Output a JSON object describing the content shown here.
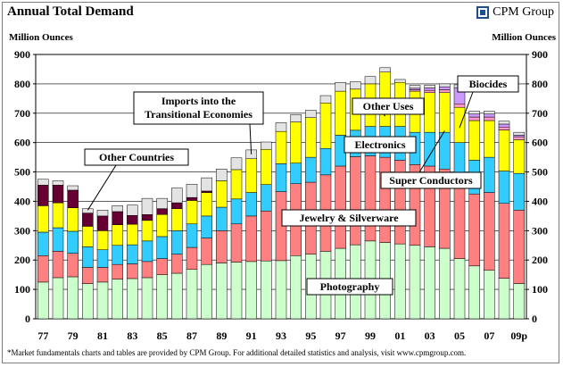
{
  "header": {
    "title": "Annual Total Demand",
    "brand": "CPM Group"
  },
  "footnote": "*Market fundamentals charts and tables are provided by CPM Group. For additional detailed statistics and analysis, visit www.cpmgroup.com.",
  "colors": {
    "photography": "#ccffcc",
    "jewelry_silverware": "#ff8080",
    "electronics": "#33ccff",
    "other_uses": "#ffff00",
    "imports_transitional": "#e3e3e3",
    "other_countries": "#660033",
    "biocides": "#cc99ff",
    "super_conductors": "#ff99cc"
  },
  "chart_data": {
    "type": "bar",
    "stacked": true,
    "title": "Annual Total Demand",
    "ylabel": "Million Ounces",
    "ylim": [
      0,
      900
    ],
    "yticks": [
      0,
      100,
      200,
      300,
      400,
      500,
      600,
      700,
      800,
      900
    ],
    "grid": true,
    "categories": [
      "1977",
      "1978",
      "1979",
      "1980",
      "1981",
      "1982",
      "1983",
      "1984",
      "1985",
      "1986",
      "1987",
      "1988",
      "1989",
      "1990",
      "1991",
      "1992",
      "1993",
      "1994",
      "1995",
      "1996",
      "1997",
      "1998",
      "1999",
      "2000",
      "2001",
      "2002",
      "2003",
      "2004",
      "2005",
      "2006",
      "2007",
      "2008",
      "2009p"
    ],
    "xtick_labels": [
      "77",
      "",
      "79",
      "",
      "81",
      "",
      "83",
      "",
      "85",
      "",
      "87",
      "",
      "89",
      "",
      "91",
      "",
      "93",
      "",
      "95",
      "",
      "97",
      "",
      "99",
      "",
      "01",
      "",
      "03",
      "",
      "05",
      "",
      "07",
      "",
      "09p"
    ],
    "series": [
      {
        "name": "Photography",
        "color": "#ccffcc",
        "values": [
          125,
          140,
          143,
          120,
          125,
          135,
          137,
          140,
          150,
          155,
          168,
          185,
          190,
          193,
          195,
          197,
          198,
          215,
          220,
          230,
          240,
          252,
          265,
          260,
          255,
          250,
          245,
          240,
          205,
          180,
          165,
          138,
          120
        ]
      },
      {
        "name": "Jewelry & Silverware",
        "color": "#ff8080",
        "values": [
          90,
          90,
          80,
          55,
          50,
          50,
          50,
          55,
          55,
          65,
          75,
          90,
          110,
          130,
          155,
          170,
          235,
          245,
          245,
          260,
          280,
          300,
          290,
          290,
          285,
          275,
          275,
          270,
          270,
          245,
          265,
          255,
          250
        ]
      },
      {
        "name": "Electronics",
        "color": "#33ccff",
        "values": [
          80,
          80,
          75,
          70,
          60,
          65,
          65,
          70,
          75,
          80,
          80,
          75,
          80,
          85,
          80,
          90,
          95,
          70,
          85,
          90,
          105,
          90,
          100,
          105,
          115,
          110,
          115,
          125,
          125,
          115,
          120,
          110,
          125
        ]
      },
      {
        "name": "Other Uses",
        "color": "#ffff00",
        "values": [
          90,
          85,
          80,
          70,
          65,
          70,
          70,
          70,
          75,
          75,
          80,
          80,
          90,
          100,
          115,
          120,
          110,
          140,
          135,
          155,
          150,
          140,
          145,
          185,
          150,
          140,
          135,
          135,
          120,
          135,
          125,
          140,
          115
        ]
      },
      {
        "name": "Super Conductors",
        "color": "#ff99cc",
        "values": [
          0,
          0,
          0,
          0,
          0,
          0,
          0,
          0,
          0,
          0,
          0,
          0,
          0,
          0,
          0,
          0,
          0,
          0,
          0,
          0,
          0,
          0,
          0,
          0,
          0,
          5,
          8,
          10,
          12,
          12,
          12,
          10,
          10
        ]
      },
      {
        "name": "Biocides",
        "color": "#cc99ff",
        "values": [
          0,
          0,
          0,
          0,
          0,
          0,
          0,
          0,
          0,
          0,
          0,
          0,
          0,
          0,
          0,
          0,
          0,
          0,
          0,
          0,
          0,
          0,
          0,
          0,
          0,
          5,
          8,
          10,
          55,
          10,
          10,
          10,
          5
        ]
      },
      {
        "name": "Other Countries",
        "color": "#660033",
        "values": [
          70,
          60,
          60,
          45,
          50,
          45,
          30,
          20,
          20,
          20,
          10,
          5,
          0,
          0,
          0,
          0,
          0,
          0,
          0,
          0,
          0,
          0,
          0,
          0,
          0,
          0,
          0,
          0,
          0,
          0,
          0,
          0,
          0
        ]
      },
      {
        "name": "Imports into the Transitional Economies",
        "color": "#e3e3e3",
        "values": [
          20,
          15,
          15,
          15,
          20,
          20,
          35,
          55,
          35,
          50,
          45,
          45,
          40,
          40,
          30,
          25,
          30,
          25,
          25,
          25,
          30,
          25,
          25,
          15,
          10,
          10,
          10,
          10,
          10,
          10,
          10,
          10,
          10
        ]
      }
    ],
    "annotations": [
      {
        "text": "Other Countries",
        "points_to": "1980"
      },
      {
        "text": "Imports into the Transitional Economies",
        "points_to": "1991"
      },
      {
        "text": "Other Uses",
        "points_to": "2000"
      },
      {
        "text": "Electronics",
        "points_to": "2001"
      },
      {
        "text": "Biocides",
        "points_to": "2005"
      },
      {
        "text": "Super Conductors",
        "points_to": "2004"
      },
      {
        "text": "Jewelry & Silverware",
        "points_to": ""
      },
      {
        "text": "Photography",
        "points_to": ""
      }
    ]
  }
}
